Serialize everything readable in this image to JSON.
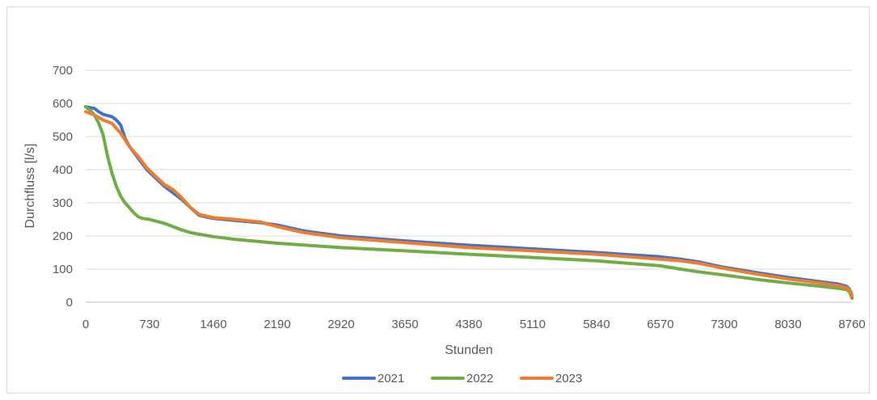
{
  "chart_data": {
    "type": "line",
    "title": "",
    "xlabel": "Stunden",
    "ylabel": "Durchfluss [l/s]",
    "xlim": [
      0,
      8760
    ],
    "ylim": [
      0,
      700
    ],
    "xticks": [
      0,
      730,
      1460,
      2190,
      2920,
      3650,
      4380,
      5110,
      5840,
      6570,
      7300,
      8030,
      8760
    ],
    "yticks": [
      0,
      100,
      200,
      300,
      400,
      500,
      600,
      700
    ],
    "grid": "horizontal",
    "legend_position": "bottom",
    "series": [
      {
        "name": "2021",
        "color": "#4472c4",
        "x": [
          0,
          100,
          150,
          200,
          300,
          350,
          400,
          450,
          500,
          600,
          700,
          800,
          900,
          1000,
          1100,
          1200,
          1300,
          1460,
          1700,
          2000,
          2190,
          2500,
          2920,
          3650,
          4380,
          5110,
          5840,
          6570,
          6800,
          7000,
          7300,
          7700,
          8030,
          8400,
          8600,
          8700,
          8730,
          8750,
          8760
        ],
        "y": [
          590,
          585,
          575,
          567,
          560,
          550,
          535,
          495,
          470,
          435,
          400,
          375,
          350,
          330,
          310,
          285,
          262,
          253,
          247,
          240,
          233,
          215,
          200,
          185,
          172,
          161,
          150,
          137,
          130,
          122,
          105,
          88,
          75,
          62,
          55,
          48,
          40,
          30,
          15
        ]
      },
      {
        "name": "2022",
        "color": "#70ad47",
        "x": [
          0,
          50,
          100,
          150,
          200,
          250,
          300,
          350,
          400,
          450,
          500,
          550,
          600,
          650,
          730,
          800,
          900,
          1000,
          1100,
          1200,
          1300,
          1460,
          1700,
          2190,
          2920,
          3650,
          4380,
          5110,
          5840,
          6570,
          6800,
          7000,
          7300,
          7700,
          8030,
          8400,
          8600,
          8700,
          8730,
          8750,
          8760
        ],
        "y": [
          590,
          580,
          565,
          540,
          505,
          440,
          390,
          350,
          320,
          300,
          285,
          270,
          258,
          253,
          250,
          245,
          238,
          228,
          218,
          210,
          205,
          198,
          190,
          178,
          165,
          155,
          145,
          135,
          125,
          110,
          100,
          92,
          82,
          68,
          58,
          48,
          42,
          38,
          32,
          20,
          12
        ]
      },
      {
        "name": "2023",
        "color": "#ed7d31",
        "x": [
          0,
          100,
          200,
          300,
          350,
          400,
          450,
          500,
          600,
          700,
          800,
          900,
          1000,
          1100,
          1200,
          1300,
          1460,
          1700,
          2000,
          2190,
          2500,
          2920,
          3650,
          4380,
          5110,
          5840,
          6570,
          6800,
          7000,
          7300,
          7700,
          8030,
          8400,
          8600,
          8700,
          8730,
          8750,
          8760
        ],
        "y": [
          575,
          565,
          550,
          540,
          525,
          510,
          490,
          470,
          440,
          405,
          380,
          355,
          340,
          315,
          285,
          265,
          255,
          250,
          242,
          228,
          210,
          195,
          180,
          165,
          155,
          145,
          130,
          125,
          118,
          102,
          84,
          70,
          58,
          50,
          44,
          38,
          30,
          18
        ]
      }
    ]
  }
}
